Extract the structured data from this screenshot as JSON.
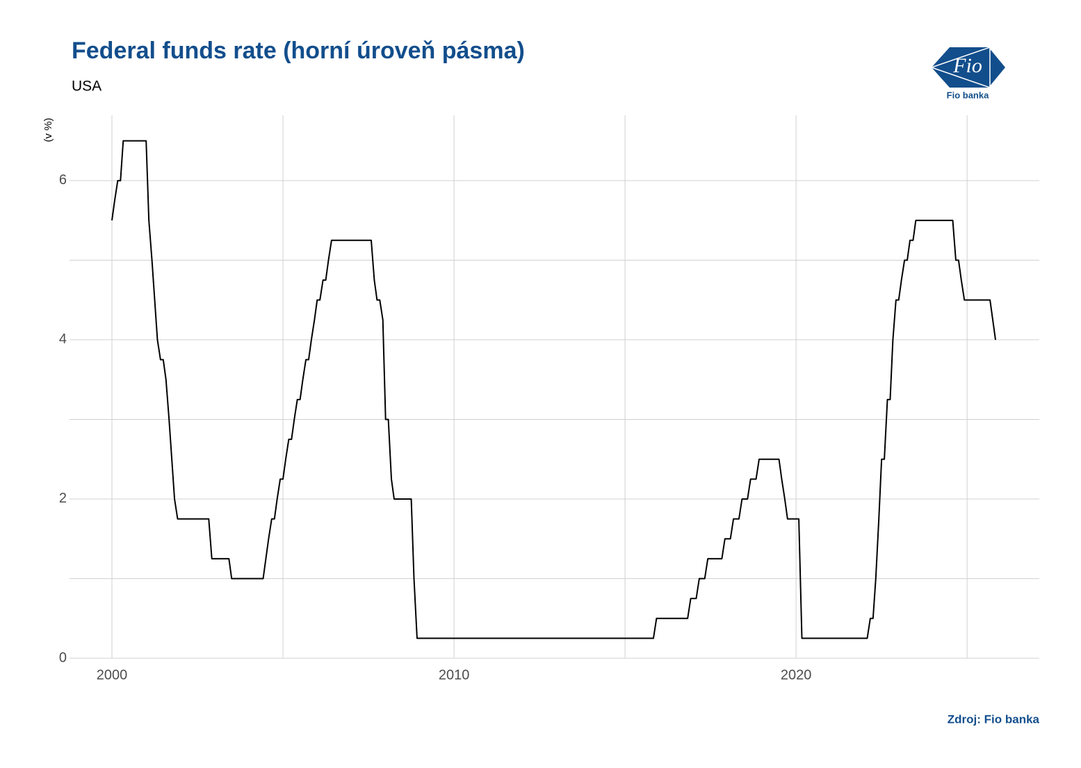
{
  "chart_data": {
    "type": "line",
    "title": "Federal funds rate (horní úroveň pásma)",
    "subtitle": "USA",
    "y_label": "(v %)",
    "source": "Zdroj: Fio banka",
    "logo_text": "Fio",
    "logo_caption": "Fio banka",
    "color": "#000000",
    "grid": true,
    "minor_grid": true,
    "xlim": [
      1998.76,
      2027.11
    ],
    "ylim": [
      0,
      6.82
    ],
    "xticks": [
      2000,
      2010,
      2020
    ],
    "yticks": [
      0,
      2,
      4,
      6
    ],
    "x": [
      2000.0,
      2000.08,
      2000.17,
      2000.25,
      2000.33,
      2001.0,
      2001.08,
      2001.17,
      2001.25,
      2001.33,
      2001.42,
      2001.5,
      2001.58,
      2001.67,
      2001.75,
      2001.83,
      2001.92,
      2002.83,
      2002.92,
      2003.42,
      2003.5,
      2004.42,
      2004.5,
      2004.58,
      2004.67,
      2004.75,
      2004.83,
      2004.92,
      2005.0,
      2005.08,
      2005.17,
      2005.25,
      2005.33,
      2005.42,
      2005.5,
      2005.58,
      2005.67,
      2005.75,
      2005.83,
      2005.92,
      2006.0,
      2006.08,
      2006.17,
      2006.25,
      2006.33,
      2006.42,
      2007.58,
      2007.67,
      2007.75,
      2007.83,
      2007.92,
      2008.0,
      2008.08,
      2008.17,
      2008.25,
      2008.75,
      2008.83,
      2008.92,
      2015.83,
      2015.92,
      2016.83,
      2016.92,
      2017.08,
      2017.17,
      2017.33,
      2017.42,
      2017.83,
      2017.92,
      2018.08,
      2018.17,
      2018.33,
      2018.42,
      2018.58,
      2018.67,
      2018.83,
      2018.92,
      2019.5,
      2019.58,
      2019.67,
      2019.75,
      2020.08,
      2020.17,
      2022.08,
      2022.17,
      2022.25,
      2022.33,
      2022.42,
      2022.5,
      2022.58,
      2022.67,
      2022.75,
      2022.83,
      2022.92,
      2023.0,
      2023.08,
      2023.17,
      2023.25,
      2023.33,
      2023.42,
      2023.5,
      2024.58,
      2024.67,
      2024.75,
      2024.83,
      2024.92,
      2025.67,
      2025.75,
      2025.83
    ],
    "values": [
      5.5,
      5.75,
      6.0,
      6.0,
      6.5,
      6.5,
      5.5,
      5.0,
      4.5,
      4.0,
      3.75,
      3.75,
      3.5,
      3.0,
      2.5,
      2.0,
      1.75,
      1.75,
      1.25,
      1.25,
      1.0,
      1.0,
      1.25,
      1.5,
      1.75,
      1.75,
      2.0,
      2.25,
      2.25,
      2.5,
      2.75,
      2.75,
      3.0,
      3.25,
      3.25,
      3.5,
      3.75,
      3.75,
      4.0,
      4.25,
      4.5,
      4.5,
      4.75,
      4.75,
      5.0,
      5.25,
      5.25,
      4.75,
      4.5,
      4.5,
      4.25,
      3.0,
      3.0,
      2.25,
      2.0,
      2.0,
      1.0,
      0.25,
      0.25,
      0.5,
      0.5,
      0.75,
      0.75,
      1.0,
      1.0,
      1.25,
      1.25,
      1.5,
      1.5,
      1.75,
      1.75,
      2.0,
      2.0,
      2.25,
      2.25,
      2.5,
      2.5,
      2.25,
      2.0,
      1.75,
      1.75,
      0.25,
      0.25,
      0.5,
      0.5,
      1.0,
      1.75,
      2.5,
      2.5,
      3.25,
      3.25,
      4.0,
      4.5,
      4.5,
      4.75,
      5.0,
      5.0,
      5.25,
      5.25,
      5.5,
      5.5,
      5.0,
      5.0,
      4.75,
      4.5,
      4.5,
      4.25,
      4.0
    ]
  }
}
